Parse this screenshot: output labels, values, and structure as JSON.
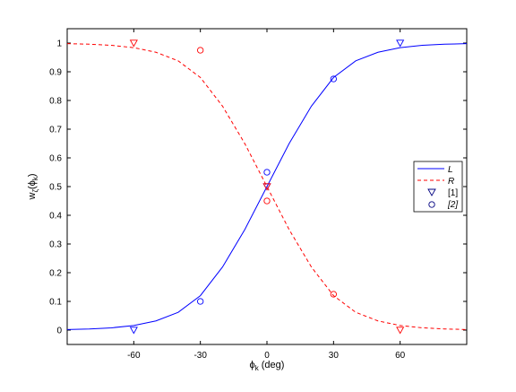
{
  "chart_data": {
    "type": "line",
    "xlabel": {
      "main": "ϕ",
      "sub": "k",
      "suffix": " (deg)"
    },
    "ylabel": {
      "w": "w",
      "w_sub": "ζ",
      "phi": "ϕ",
      "phi_sub": "k"
    },
    "xlim": [
      -90,
      90
    ],
    "ylim": [
      -0.05,
      1.05
    ],
    "xticks": [
      -60,
      -30,
      0,
      30,
      60
    ],
    "xtick_labels": [
      "-60",
      "-30",
      "0",
      "30",
      "60"
    ],
    "yticks": [
      0,
      0.1,
      0.2,
      0.3,
      0.4,
      0.5,
      0.6,
      0.7,
      0.8,
      0.9,
      1
    ],
    "ytick_labels": [
      "0",
      "0.1",
      "0.2",
      "0.3",
      "0.4",
      "0.5",
      "0.6",
      "0.7",
      "0.8",
      "0.9",
      "1"
    ],
    "grid": false,
    "legend_position": "right",
    "series": [
      {
        "name": "L",
        "kind": "line",
        "style": "solid",
        "color": "#0000ff",
        "x": [
          -90,
          -80,
          -70,
          -60,
          -50,
          -40,
          -30,
          -20,
          -10,
          0,
          10,
          20,
          30,
          40,
          50,
          60,
          70,
          80,
          90
        ],
        "y": [
          0.002,
          0.004,
          0.008,
          0.016,
          0.032,
          0.062,
          0.12,
          0.22,
          0.35,
          0.5,
          0.65,
          0.78,
          0.88,
          0.938,
          0.968,
          0.984,
          0.992,
          0.996,
          0.998
        ]
      },
      {
        "name": "R",
        "kind": "line",
        "style": "dashed",
        "color": "#ff0000",
        "x": [
          -90,
          -80,
          -70,
          -60,
          -50,
          -40,
          -30,
          -20,
          -10,
          0,
          10,
          20,
          30,
          40,
          50,
          60,
          70,
          80,
          90
        ],
        "y": [
          0.998,
          0.996,
          0.992,
          0.984,
          0.968,
          0.938,
          0.88,
          0.78,
          0.65,
          0.5,
          0.35,
          0.22,
          0.12,
          0.062,
          0.032,
          0.016,
          0.008,
          0.004,
          0.002
        ]
      },
      {
        "name": "[1]",
        "kind": "marker",
        "marker": "triangle-down",
        "points": [
          {
            "x": -60,
            "y": 0.0,
            "color": "#0000ff"
          },
          {
            "x": -60,
            "y": 1.0,
            "color": "#ff0000"
          },
          {
            "x": 0,
            "y": 0.5,
            "color": "#0000ff"
          },
          {
            "x": 0,
            "y": 0.5,
            "color": "#ff0000"
          },
          {
            "x": 60,
            "y": 1.0,
            "color": "#0000ff"
          },
          {
            "x": 60,
            "y": 0.0,
            "color": "#ff0000"
          }
        ]
      },
      {
        "name": "[2]",
        "kind": "marker",
        "marker": "circle",
        "points": [
          {
            "x": -30,
            "y": 0.1,
            "color": "#0000ff"
          },
          {
            "x": -30,
            "y": 0.975,
            "color": "#ff0000"
          },
          {
            "x": 0,
            "y": 0.55,
            "color": "#0000ff"
          },
          {
            "x": 0,
            "y": 0.45,
            "color": "#ff0000"
          },
          {
            "x": 30,
            "y": 0.875,
            "color": "#0000ff"
          },
          {
            "x": 30,
            "y": 0.125,
            "color": "#ff0000"
          }
        ]
      }
    ],
    "legend": [
      {
        "label": "L",
        "style": "solid-line",
        "color": "#0000ff",
        "italic": true
      },
      {
        "label": "R",
        "style": "dashed-line",
        "color": "#ff0000",
        "italic": true
      },
      {
        "label": "[1]",
        "style": "triangle-down",
        "color": "#000080",
        "italic": false
      },
      {
        "label": "[2]",
        "style": "circle",
        "color": "#000080",
        "italic": true
      }
    ]
  }
}
